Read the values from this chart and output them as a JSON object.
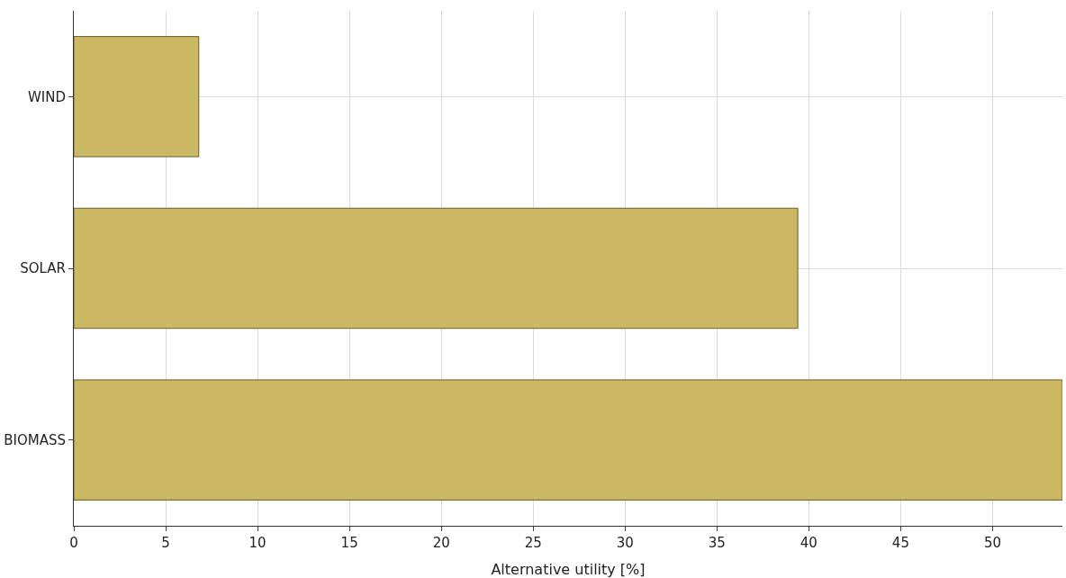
{
  "chart_data": {
    "type": "bar",
    "orientation": "horizontal",
    "xlabel": "Alternative utility [%]",
    "categories": [
      "WIND",
      "SOLAR",
      "BIOMASS"
    ],
    "values": [
      6.8,
      39.4,
      53.8
    ],
    "color": "#cbb862",
    "xlim": [
      0,
      53.8
    ],
    "xticks": [
      0,
      5,
      10,
      15,
      20,
      25,
      30,
      35,
      40,
      45,
      50
    ],
    "grid": true
  }
}
